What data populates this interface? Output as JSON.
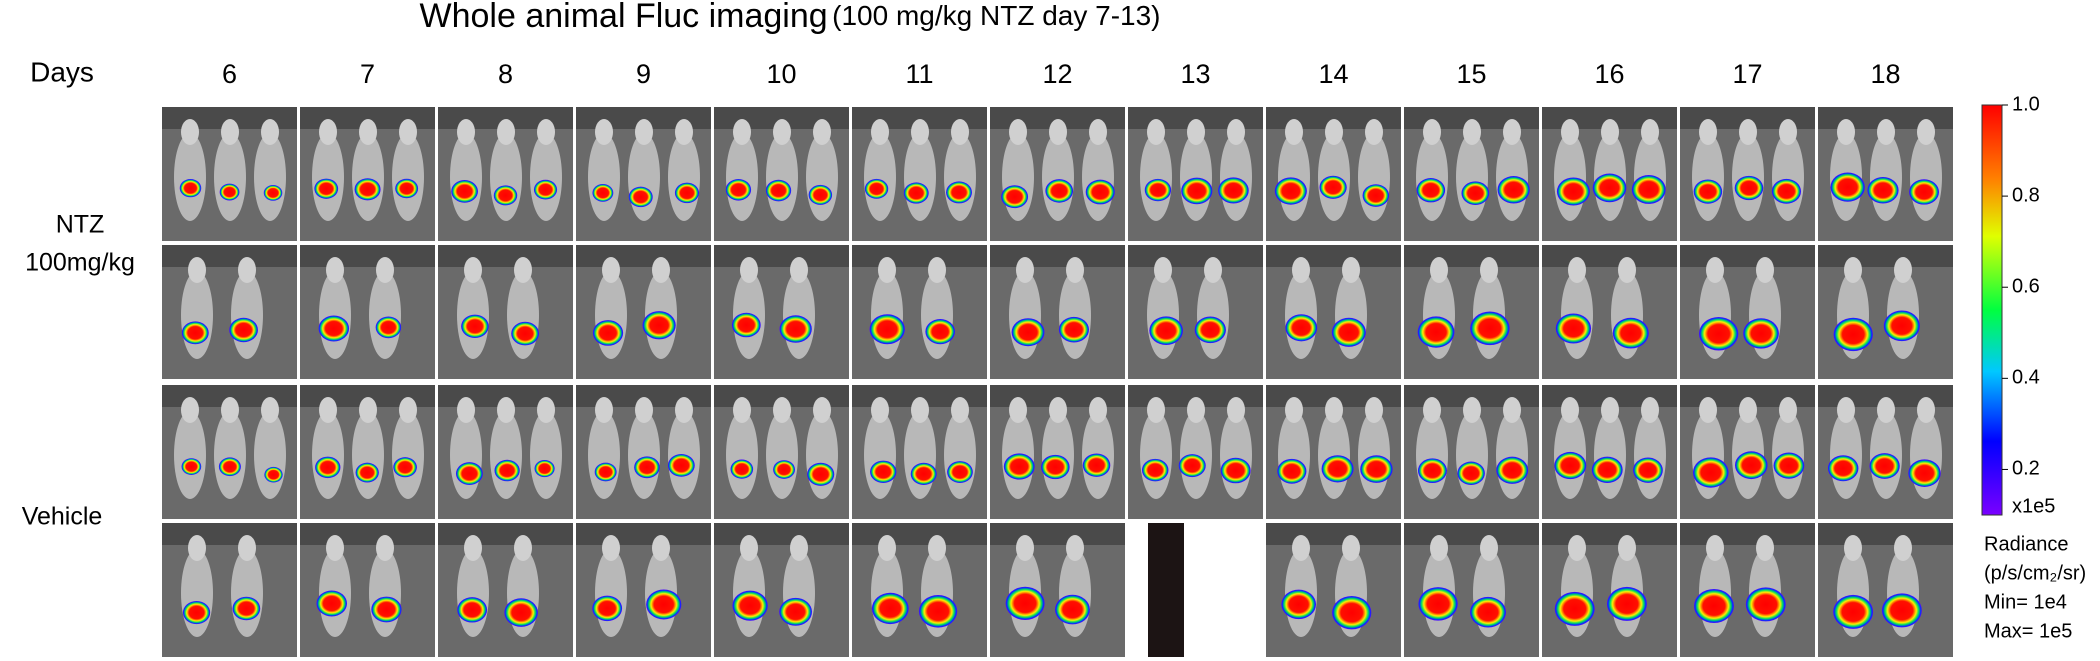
{
  "title": "Whole animal Fluc imaging",
  "title_suffix": "(100 mg/kg NTZ day 7-13)",
  "column_header": "Days",
  "days": [
    "6",
    "7",
    "8",
    "9",
    "10",
    "11",
    "12",
    "13",
    "14",
    "15",
    "16",
    "17",
    "18"
  ],
  "groups": [
    {
      "label": [
        "NTZ",
        "100mg/kg"
      ]
    },
    {
      "label": [
        "Vehicle"
      ]
    }
  ],
  "colorbar": {
    "lim": [
      0.1,
      1
    ],
    "ticks": [
      0.2,
      0.4,
      0.6,
      {
        "value": 0.8,
        "label": "0.8"
      },
      {
        "value": 1,
        "label": "1.0"
      }
    ],
    "unit": "x1e5",
    "legend": [
      "Radiance",
      "(p/s/cm₂/sr)",
      "Min= 1e4",
      "Max= 1e5"
    ]
  }
}
